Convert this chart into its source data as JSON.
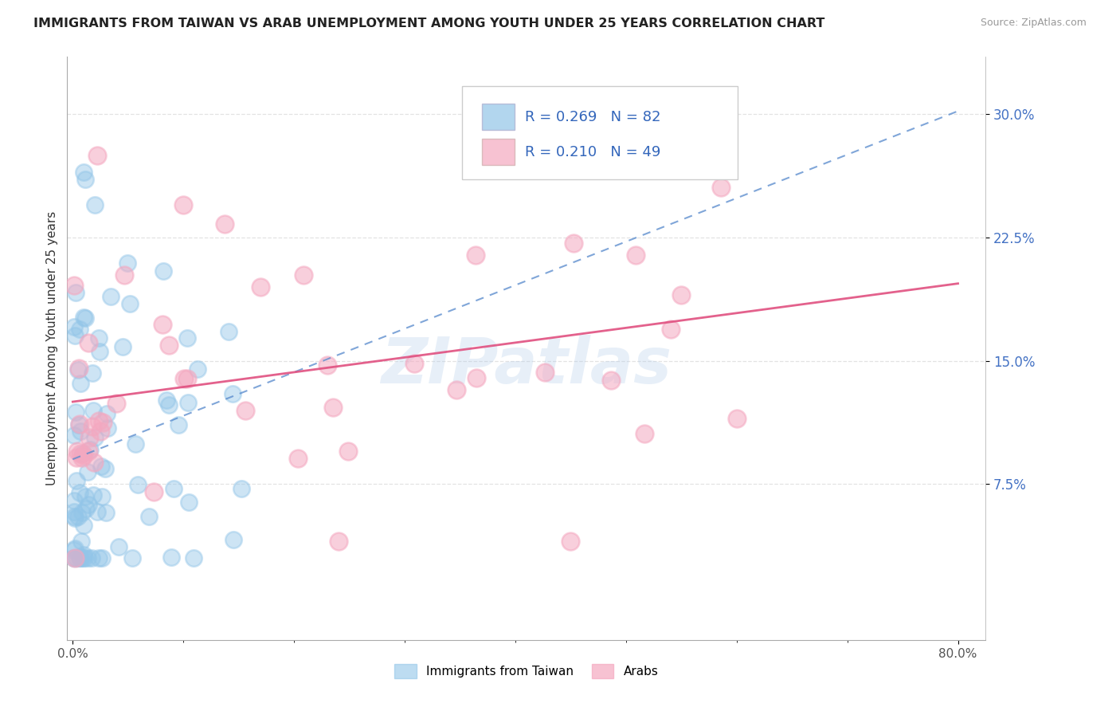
{
  "title": "IMMIGRANTS FROM TAIWAN VS ARAB UNEMPLOYMENT AMONG YOUTH UNDER 25 YEARS CORRELATION CHART",
  "source": "Source: ZipAtlas.com",
  "ylabel": "Unemployment Among Youth under 25 years",
  "watermark": "ZIPatlas",
  "xlim_min": -0.005,
  "xlim_max": 0.825,
  "ylim_min": -0.02,
  "ylim_max": 0.335,
  "ytick_values": [
    0.075,
    0.15,
    0.225,
    0.3
  ],
  "ytick_labels": [
    "7.5%",
    "15.0%",
    "22.5%",
    "30.0%"
  ],
  "legend_taiwan": "Immigrants from Taiwan",
  "legend_arabs": "Arabs",
  "R_taiwan": 0.269,
  "N_taiwan": 82,
  "R_arabs": 0.21,
  "N_arabs": 49,
  "color_taiwan": "#92C5E8",
  "color_arabs": "#F4A8C0",
  "trendline_taiwan_color": "#5588CC",
  "trendline_arabs_color": "#E05080",
  "background_color": "#ffffff",
  "grid_color": "#dddddd",
  "taiwan_intercept": 0.09,
  "taiwan_slope": 0.265,
  "arabs_intercept": 0.125,
  "arabs_slope": 0.09
}
